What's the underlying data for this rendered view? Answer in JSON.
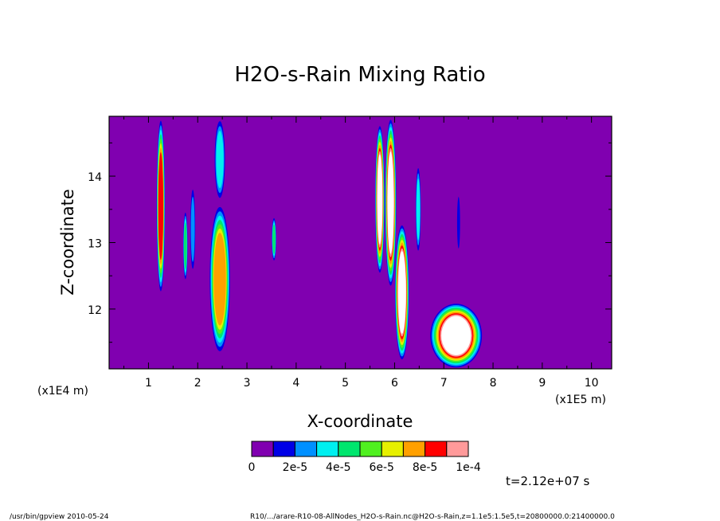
{
  "chart_data": {
    "type": "heatmap",
    "title": "H2O-s-Rain Mixing Ratio",
    "xlabel": "X-coordinate",
    "ylabel": "Z-coordinate",
    "x_unit": "(x1E5 m)",
    "y_unit": "(x1E4 m)",
    "xlim": [
      0,
      10.2
    ],
    "ylim": [
      11.1,
      14.9
    ],
    "x_ticks": [
      "1",
      "2",
      "3",
      "4",
      "5",
      "6",
      "7",
      "8",
      "9",
      "10"
    ],
    "y_ticks": [
      "12",
      "13",
      "14"
    ],
    "background_color": "#8000b0",
    "colorbar": {
      "labels": [
        "0",
        "2e-5",
        "4e-5",
        "6e-5",
        "8e-5",
        "1e-4"
      ],
      "colors": [
        "#8000b0",
        "#0000e6",
        "#0090ff",
        "#00f0f0",
        "#00e66e",
        "#50f020",
        "#e6f000",
        "#ffa000",
        "#ff0000",
        "#ff9a9a"
      ],
      "over_color": "#ffffff"
    },
    "features": [
      {
        "x": 1.25,
        "z0": 12.2,
        "z1": 14.9,
        "w": 0.09,
        "level": 8
      },
      {
        "x": 1.75,
        "z0": 12.4,
        "z1": 13.5,
        "w": 0.05,
        "level": 4
      },
      {
        "x": 1.9,
        "z0": 12.5,
        "z1": 13.9,
        "w": 0.06,
        "level": 2
      },
      {
        "x": 2.45,
        "z0": 11.3,
        "z1": 13.6,
        "w": 0.22,
        "level": 7
      },
      {
        "x": 2.45,
        "z0": 13.6,
        "z1": 14.9,
        "w": 0.12,
        "level": 3
      },
      {
        "x": 3.55,
        "z0": 12.7,
        "z1": 13.4,
        "w": 0.05,
        "level": 4
      },
      {
        "x": 5.7,
        "z0": 12.5,
        "z1": 14.8,
        "w": 0.1,
        "level": 10
      },
      {
        "x": 5.92,
        "z0": 12.3,
        "z1": 14.9,
        "w": 0.12,
        "level": 10
      },
      {
        "x": 6.15,
        "z0": 11.2,
        "z1": 13.3,
        "w": 0.15,
        "level": 10
      },
      {
        "x": 6.48,
        "z0": 12.8,
        "z1": 14.2,
        "w": 0.06,
        "level": 3
      },
      {
        "x": 7.25,
        "z0": 11.1,
        "z1": 12.1,
        "w": 0.55,
        "level": 10
      },
      {
        "x": 7.3,
        "z0": 12.8,
        "z1": 13.8,
        "w": 0.04,
        "level": 1
      }
    ]
  },
  "time_label": "t=2.12e+07 s",
  "footer": {
    "left": "/usr/bin/gpview  2010-05-24",
    "right": "R10/.../arare-R10-08-AllNodes_H2O-s-Rain.nc@H2O-s-Rain,z=1.1e5:1.5e5,t=20800000.0:21400000.0"
  }
}
